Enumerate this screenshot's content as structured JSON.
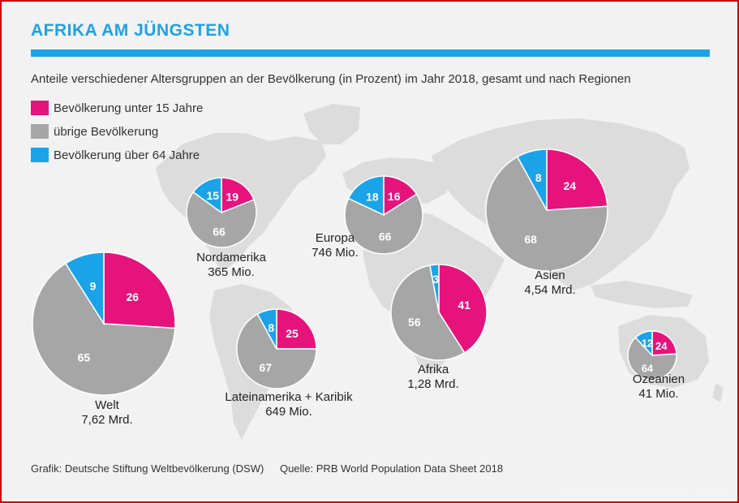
{
  "header": {
    "title": "AFRIKA AM JÜNGSTEN",
    "subtitle": "Anteile verschiedener Altersgruppen an der Bevölkerung (in Prozent) im Jahr 2018, gesamt und nach Regionen"
  },
  "colors": {
    "accent": "#1aa3e8",
    "under15": "#e6137c",
    "rest": "#a6a6a6",
    "over64": "#1aa3e8",
    "map": "#dcdcdc",
    "background": "#f2f2f2"
  },
  "legend": [
    {
      "label": "Bevölkerung unter 15 Jahre",
      "color": "#e6137c"
    },
    {
      "label": "übrige Bevölkerung",
      "color": "#a6a6a6"
    },
    {
      "label": "Bevölkerung über 64 Jahre",
      "color": "#1aa3e8"
    }
  ],
  "footer": {
    "credit": "Grafik: Deutsche Stiftung Weltbevölkerung (DSW)",
    "source": "Quelle: PRB World Population Data Sheet 2018"
  },
  "watermark": "Bevölkerungspyramide Interaktive Weltkarte",
  "chart_data": {
    "type": "pie",
    "series_names": [
      "Bevölkerung unter 15 Jahre",
      "übrige Bevölkerung",
      "Bevölkerung über 64 Jahre"
    ],
    "regions": [
      {
        "name": "Welt",
        "population": "7,62 Mrd.",
        "under15": 26,
        "rest": 65,
        "over64": 9
      },
      {
        "name": "Nordamerika",
        "population": "365 Mio.",
        "under15": 19,
        "rest": 66,
        "over64": 15
      },
      {
        "name": "Lateinamerika + Karibik",
        "population": "649 Mio.",
        "under15": 25,
        "rest": 67,
        "over64": 8
      },
      {
        "name": "Europa",
        "population": "746 Mio.",
        "under15": 16,
        "rest": 66,
        "over64": 18
      },
      {
        "name": "Afrika",
        "population": "1,28 Mrd.",
        "under15": 41,
        "rest": 56,
        "over64": 3
      },
      {
        "name": "Asien",
        "population": "4,54 Mrd.",
        "under15": 24,
        "rest": 68,
        "over64": 8
      },
      {
        "name": "Ozeanien",
        "population": "41 Mio.",
        "under15": 24,
        "rest": 64,
        "over64": 12
      }
    ]
  }
}
